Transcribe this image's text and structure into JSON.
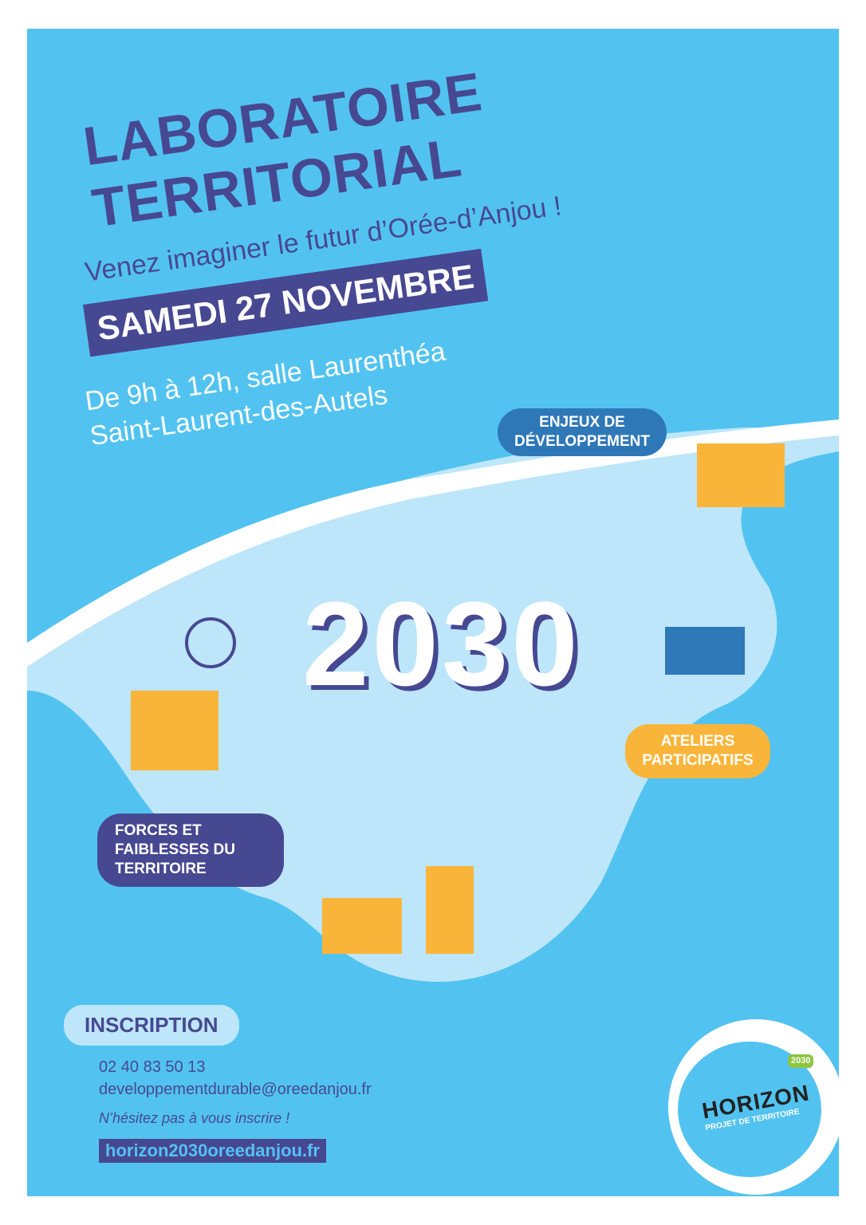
{
  "header": {
    "title_line1": "LABORATOIRE",
    "title_line2": "TERRITORIAL",
    "subtitle": "Venez imaginer le futur d’Orée-d’Anjou !",
    "date": "SAMEDI 27 NOVEMBRE",
    "time_place": "De 9h à 12h, salle Laurenthéa",
    "town": "Saint-Laurent-des-Autels"
  },
  "map": {
    "year": "2030",
    "bubbles": {
      "enjeux": "ENJEUX DE DÉVELOPPEMENT",
      "ateliers": "ATELIERS PARTICIPATIFS",
      "forces": "FORCES ET FAIBLESSES DU TERRITOIRE"
    }
  },
  "inscription": {
    "label": "INSCRIPTION",
    "phone": "02 40 83 50 13",
    "email": "developpementdurable@oreedanjou.fr",
    "note": "N’hésitez pas à vous inscrire !",
    "website": "horizon2030oreedanjou.fr"
  },
  "logo": {
    "name": "HORIZON",
    "tagline": "PROJET DE TERRITOIRE",
    "badge": "2030"
  },
  "colors": {
    "background": "#52c3f0",
    "primary": "#474892",
    "map": "#bde6fa",
    "accent": "#f9b53a"
  }
}
